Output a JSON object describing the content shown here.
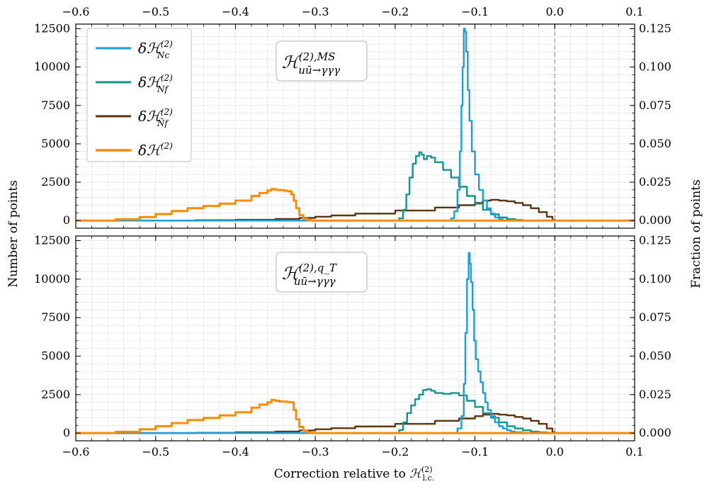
{
  "chart_data": [
    {
      "type": "line",
      "panel": "top",
      "annotation": {
        "main": "ℋ",
        "sup": "(2),MS",
        "sub": "uū→γγγ"
      },
      "xlim": [
        -0.6,
        0.1
      ],
      "ylim": [
        -500,
        12800
      ],
      "y2lim": [
        -0.005,
        0.128
      ],
      "xticks": [
        "−0.6",
        "−0.5",
        "−0.4",
        "−0.3",
        "−0.2",
        "−0.1",
        "0.0",
        "0.1"
      ],
      "xtick_values": [
        -0.6,
        -0.5,
        -0.4,
        -0.3,
        -0.2,
        -0.1,
        0.0,
        0.1
      ],
      "yticks": [
        "0",
        "2500",
        "5000",
        "7500",
        "10000",
        "12500"
      ],
      "ytick_values": [
        0,
        2500,
        5000,
        7500,
        10000,
        12500
      ],
      "y2ticks": [
        "0.000",
        "0.025",
        "0.050",
        "0.075",
        "0.100",
        "0.125"
      ],
      "y2tick_values": [
        0,
        0.025,
        0.05,
        0.075,
        0.1,
        0.125
      ],
      "vline_x": 0.0,
      "grid": true,
      "legend_position": "top-left",
      "series": [
        {
          "name": "δℋ(2) N_c",
          "color": "#1a9ee0",
          "x": [
            -0.6,
            -0.14,
            -0.13,
            -0.126,
            -0.122,
            -0.119,
            -0.117,
            -0.1155,
            -0.114,
            -0.1125,
            -0.111,
            -0.109,
            -0.107,
            -0.104,
            -0.1,
            -0.095,
            -0.09,
            -0.085,
            -0.08,
            -0.075,
            -0.07,
            -0.065,
            -0.06,
            0.1
          ],
          "y": [
            0,
            0,
            150,
            600,
            2000,
            4500,
            7500,
            10000,
            12500,
            12300,
            11000,
            8500,
            6500,
            4500,
            3000,
            2000,
            1300,
            800,
            450,
            200,
            80,
            20,
            0,
            0
          ]
        },
        {
          "name": "δℋ(2) N_f",
          "color": "#129688",
          "x": [
            -0.6,
            -0.2,
            -0.195,
            -0.19,
            -0.186,
            -0.182,
            -0.178,
            -0.174,
            -0.17,
            -0.167,
            -0.164,
            -0.16,
            -0.155,
            -0.15,
            -0.14,
            -0.13,
            -0.12,
            -0.11,
            -0.1,
            -0.09,
            -0.08,
            -0.07,
            -0.06,
            -0.05,
            -0.04,
            0.1
          ],
          "y": [
            0,
            0,
            150,
            700,
            1700,
            2800,
            3700,
            4200,
            4450,
            4300,
            4000,
            4200,
            4100,
            3800,
            3300,
            2800,
            2200,
            1600,
            1100,
            700,
            400,
            200,
            100,
            40,
            0,
            0
          ]
        },
        {
          "name": "δℋ(2) Ñ_f",
          "color": "#5a3510",
          "x": [
            -0.6,
            -0.45,
            -0.4,
            -0.35,
            -0.32,
            -0.3,
            -0.28,
            -0.25,
            -0.2,
            -0.15,
            -0.12,
            -0.1,
            -0.09,
            -0.08,
            -0.07,
            -0.06,
            -0.05,
            -0.04,
            -0.03,
            -0.02,
            -0.01,
            -0.003,
            0.0,
            0.1
          ],
          "y": [
            0,
            20,
            50,
            100,
            170,
            250,
            330,
            450,
            650,
            850,
            1000,
            1150,
            1300,
            1350,
            1300,
            1250,
            1150,
            1000,
            800,
            550,
            250,
            40,
            0,
            0
          ]
        },
        {
          "name": "δℋ(2)",
          "color": "#ff8c00",
          "x": [
            -0.6,
            -0.55,
            -0.52,
            -0.5,
            -0.48,
            -0.46,
            -0.44,
            -0.42,
            -0.4,
            -0.38,
            -0.37,
            -0.36,
            -0.355,
            -0.35,
            -0.345,
            -0.34,
            -0.335,
            -0.33,
            -0.327,
            -0.324,
            -0.32,
            -0.315,
            -0.31,
            -0.305,
            0.1
          ],
          "y": [
            0,
            80,
            230,
            420,
            620,
            800,
            950,
            1100,
            1300,
            1600,
            1800,
            1950,
            2050,
            2000,
            1980,
            1950,
            1900,
            1700,
            1300,
            800,
            350,
            120,
            30,
            0,
            0
          ]
        }
      ]
    },
    {
      "type": "line",
      "panel": "bottom",
      "annotation": {
        "main": "ℋ",
        "sup": "(2),q_T",
        "sub": "uū→γγγ"
      },
      "xlabel": "Correction relative to ℋ(2) l.c.",
      "xlim": [
        -0.6,
        0.1
      ],
      "ylim": [
        -500,
        12800
      ],
      "y2lim": [
        -0.005,
        0.128
      ],
      "xticks": [
        "−0.6",
        "−0.5",
        "−0.4",
        "−0.3",
        "−0.2",
        "−0.1",
        "0.0",
        "0.1"
      ],
      "xtick_values": [
        -0.6,
        -0.5,
        -0.4,
        -0.3,
        -0.2,
        -0.1,
        0.0,
        0.1
      ],
      "yticks": [
        "0",
        "2500",
        "5000",
        "7500",
        "10000",
        "12500"
      ],
      "ytick_values": [
        0,
        2500,
        5000,
        7500,
        10000,
        12500
      ],
      "y2ticks": [
        "0.000",
        "0.025",
        "0.050",
        "0.075",
        "0.100",
        "0.125"
      ],
      "y2tick_values": [
        0,
        0.025,
        0.05,
        0.075,
        0.1,
        0.125
      ],
      "vline_x": 0.0,
      "grid": true,
      "series": [
        {
          "name": "δℋ(2) N_c",
          "color": "#1a9ee0",
          "x": [
            -0.6,
            -0.13,
            -0.122,
            -0.117,
            -0.114,
            -0.112,
            -0.11,
            -0.108,
            -0.1065,
            -0.105,
            -0.103,
            -0.101,
            -0.099,
            -0.096,
            -0.093,
            -0.09,
            -0.087,
            -0.084,
            -0.08,
            -0.075,
            -0.07,
            -0.065,
            -0.06,
            -0.055,
            -0.05,
            -0.04,
            0.1
          ],
          "y": [
            0,
            0,
            300,
            1100,
            3200,
            6500,
            10000,
            11700,
            11000,
            9800,
            8000,
            6000,
            4800,
            4000,
            3300,
            2600,
            2000,
            1500,
            1100,
            700,
            450,
            300,
            180,
            100,
            50,
            0,
            0
          ]
        },
        {
          "name": "δℋ(2) N_f",
          "color": "#129688",
          "x": [
            -0.6,
            -0.2,
            -0.195,
            -0.19,
            -0.185,
            -0.18,
            -0.175,
            -0.17,
            -0.165,
            -0.16,
            -0.155,
            -0.15,
            -0.14,
            -0.13,
            -0.12,
            -0.11,
            -0.1,
            -0.09,
            -0.08,
            -0.07,
            -0.06,
            -0.05,
            -0.04,
            -0.03,
            -0.02,
            -0.01,
            0.0,
            0.1
          ],
          "y": [
            0,
            0,
            200,
            700,
            1300,
            1800,
            2200,
            2500,
            2800,
            2850,
            2750,
            2600,
            2550,
            2600,
            2450,
            2100,
            1700,
            1300,
            1000,
            700,
            450,
            300,
            180,
            100,
            50,
            20,
            0,
            0
          ]
        },
        {
          "name": "δℋ(2) Ñ_f",
          "color": "#5a3510",
          "x": [
            -0.6,
            -0.45,
            -0.4,
            -0.35,
            -0.32,
            -0.3,
            -0.28,
            -0.25,
            -0.2,
            -0.15,
            -0.12,
            -0.1,
            -0.09,
            -0.08,
            -0.07,
            -0.06,
            -0.05,
            -0.04,
            -0.03,
            -0.02,
            -0.01,
            -0.003,
            0.0,
            0.1
          ],
          "y": [
            0,
            20,
            50,
            100,
            170,
            250,
            320,
            430,
            600,
            800,
            950,
            1100,
            1200,
            1250,
            1200,
            1150,
            1050,
            950,
            800,
            600,
            300,
            60,
            0,
            0
          ]
        },
        {
          "name": "δℋ(2)",
          "color": "#ff8c00",
          "x": [
            -0.6,
            -0.55,
            -0.52,
            -0.5,
            -0.48,
            -0.46,
            -0.44,
            -0.42,
            -0.4,
            -0.38,
            -0.37,
            -0.36,
            -0.355,
            -0.35,
            -0.345,
            -0.34,
            -0.335,
            -0.33,
            -0.327,
            -0.324,
            -0.32,
            -0.315,
            -0.31,
            -0.305,
            0.1
          ],
          "y": [
            0,
            90,
            250,
            450,
            650,
            850,
            980,
            1150,
            1350,
            1650,
            1850,
            2000,
            2150,
            2100,
            2050,
            2050,
            2020,
            2000,
            1500,
            900,
            400,
            150,
            40,
            0,
            0
          ]
        }
      ]
    }
  ],
  "labels": {
    "left_axis": "Number of points",
    "right_axis": "Fraction of points",
    "xlabel_main": "Correction relative to ",
    "xlabel_symbol": "ℋ",
    "xlabel_sup": "(2)",
    "xlabel_sub": "l.c."
  },
  "legend": [
    {
      "main": "δℋ",
      "sup": "(2)",
      "sub": "N_c",
      "color": "#1a9ee0"
    },
    {
      "main": "δℋ",
      "sup": "(2)",
      "sub": "N_f",
      "color": "#129688"
    },
    {
      "main": "δℋ",
      "sup": "(2)",
      "sub": "Ñ_f",
      "color": "#5a3510"
    },
    {
      "main": "δℋ",
      "sup": "(2)",
      "sub": "",
      "color": "#ff8c00"
    }
  ],
  "colors": {
    "vline": "#aaaaaa",
    "grid": "#dddddd"
  }
}
